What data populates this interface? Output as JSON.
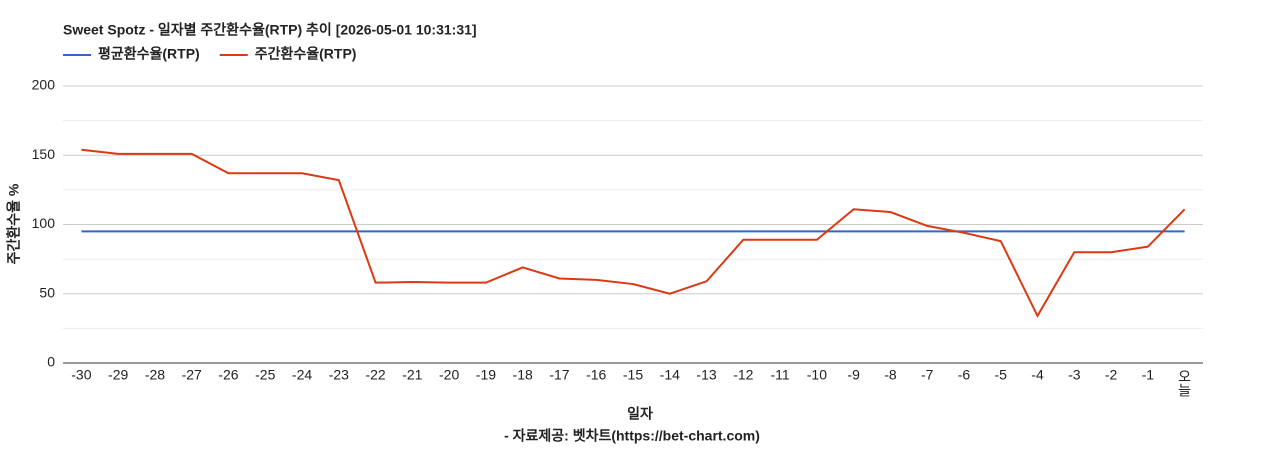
{
  "chart_data": {
    "type": "line",
    "title": "Sweet Spotz - 일자별 주간환수율(RTP) 추이 [2026-05-01 10:31:31]",
    "x_label": "일자",
    "y_label": "주간환수율 %",
    "source": "- 자료제공: 벳차트(https://bet-chart.com)",
    "categories": [
      "-30",
      "-29",
      "-28",
      "-27",
      "-26",
      "-25",
      "-24",
      "-23",
      "-22",
      "-21",
      "-20",
      "-19",
      "-18",
      "-17",
      "-16",
      "-15",
      "-14",
      "-13",
      "-12",
      "-11",
      "-10",
      "-9",
      "-8",
      "-7",
      "-6",
      "-5",
      "-4",
      "-3",
      "-2",
      "-1",
      "오늘"
    ],
    "series": [
      {
        "name": "평균환수율(RTP)",
        "color": "#3366cc",
        "values": [
          95,
          95,
          95,
          95,
          95,
          95,
          95,
          95,
          95,
          95,
          95,
          95,
          95,
          95,
          95,
          95,
          95,
          95,
          95,
          95,
          95,
          95,
          95,
          95,
          95,
          95,
          95,
          95,
          95,
          95,
          95
        ]
      },
      {
        "name": "주간환수율(RTP)",
        "color": "#dc3912",
        "values": [
          154,
          151,
          151,
          151,
          137,
          137,
          137,
          132,
          58,
          58.5,
          58,
          58,
          69,
          61,
          60,
          57,
          50,
          59,
          89,
          89,
          89,
          111,
          109,
          99,
          94,
          88,
          34,
          80,
          80,
          84,
          111
        ]
      }
    ],
    "ylim": [
      0,
      200
    ],
    "yticks": [
      0,
      50,
      100,
      150,
      200
    ],
    "minor_yticks": [
      25,
      75,
      125,
      175
    ],
    "grid": true,
    "legend": "top"
  }
}
